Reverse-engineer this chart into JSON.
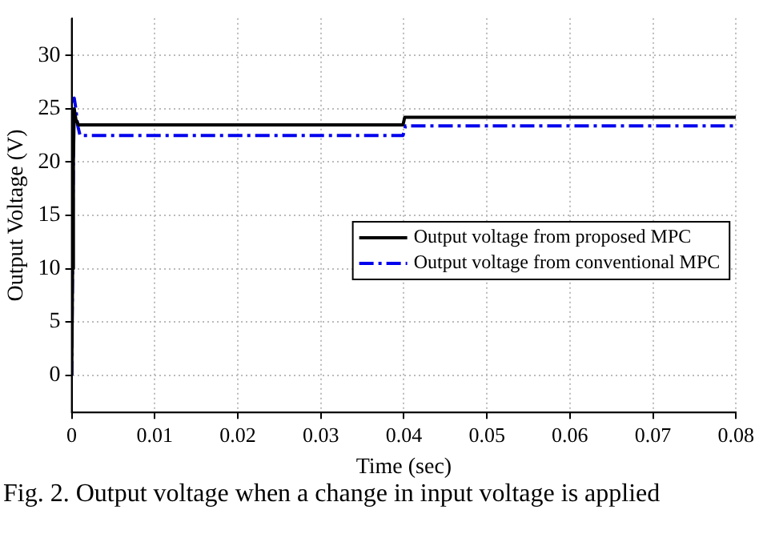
{
  "chart_data": {
    "type": "line",
    "xlabel": "Time (sec)",
    "ylabel": "Output Voltage (V)",
    "annotations": [
      "Fig. 2. Output voltage when a change in input voltage is applied"
    ],
    "xlim": [
      0,
      0.08
    ],
    "xticks": [
      0,
      0.01,
      0.02,
      0.03,
      0.04,
      0.05,
      0.06,
      0.07,
      0.08
    ],
    "ylim": [
      -3.5,
      33.5
    ],
    "yticks": [
      0,
      5,
      10,
      15,
      20,
      25,
      30
    ],
    "grid": true,
    "legend": "right",
    "marker": "none",
    "series": [
      {
        "name": "Output voltage from proposed MPC",
        "color": "#000000",
        "line_style": "solid",
        "x": [
          0,
          0.0001,
          0.0002,
          0.0003,
          0.0005,
          0.0008,
          0.0399,
          0.0401,
          0.08
        ],
        "values": [
          0,
          10,
          20,
          25,
          24,
          23.5,
          23.5,
          24.2,
          24.2
        ]
      },
      {
        "name": "Output voltage from conventional MPC",
        "color": "#0000ee",
        "line_style": "dashed",
        "x": [
          0,
          0.0002,
          0.0003,
          0.0005,
          0.0007,
          0.001,
          0.0399,
          0.0402,
          0.08
        ],
        "values": [
          0,
          22,
          26,
          25,
          23.5,
          22.5,
          22.5,
          23.4,
          23.4
        ]
      }
    ]
  }
}
